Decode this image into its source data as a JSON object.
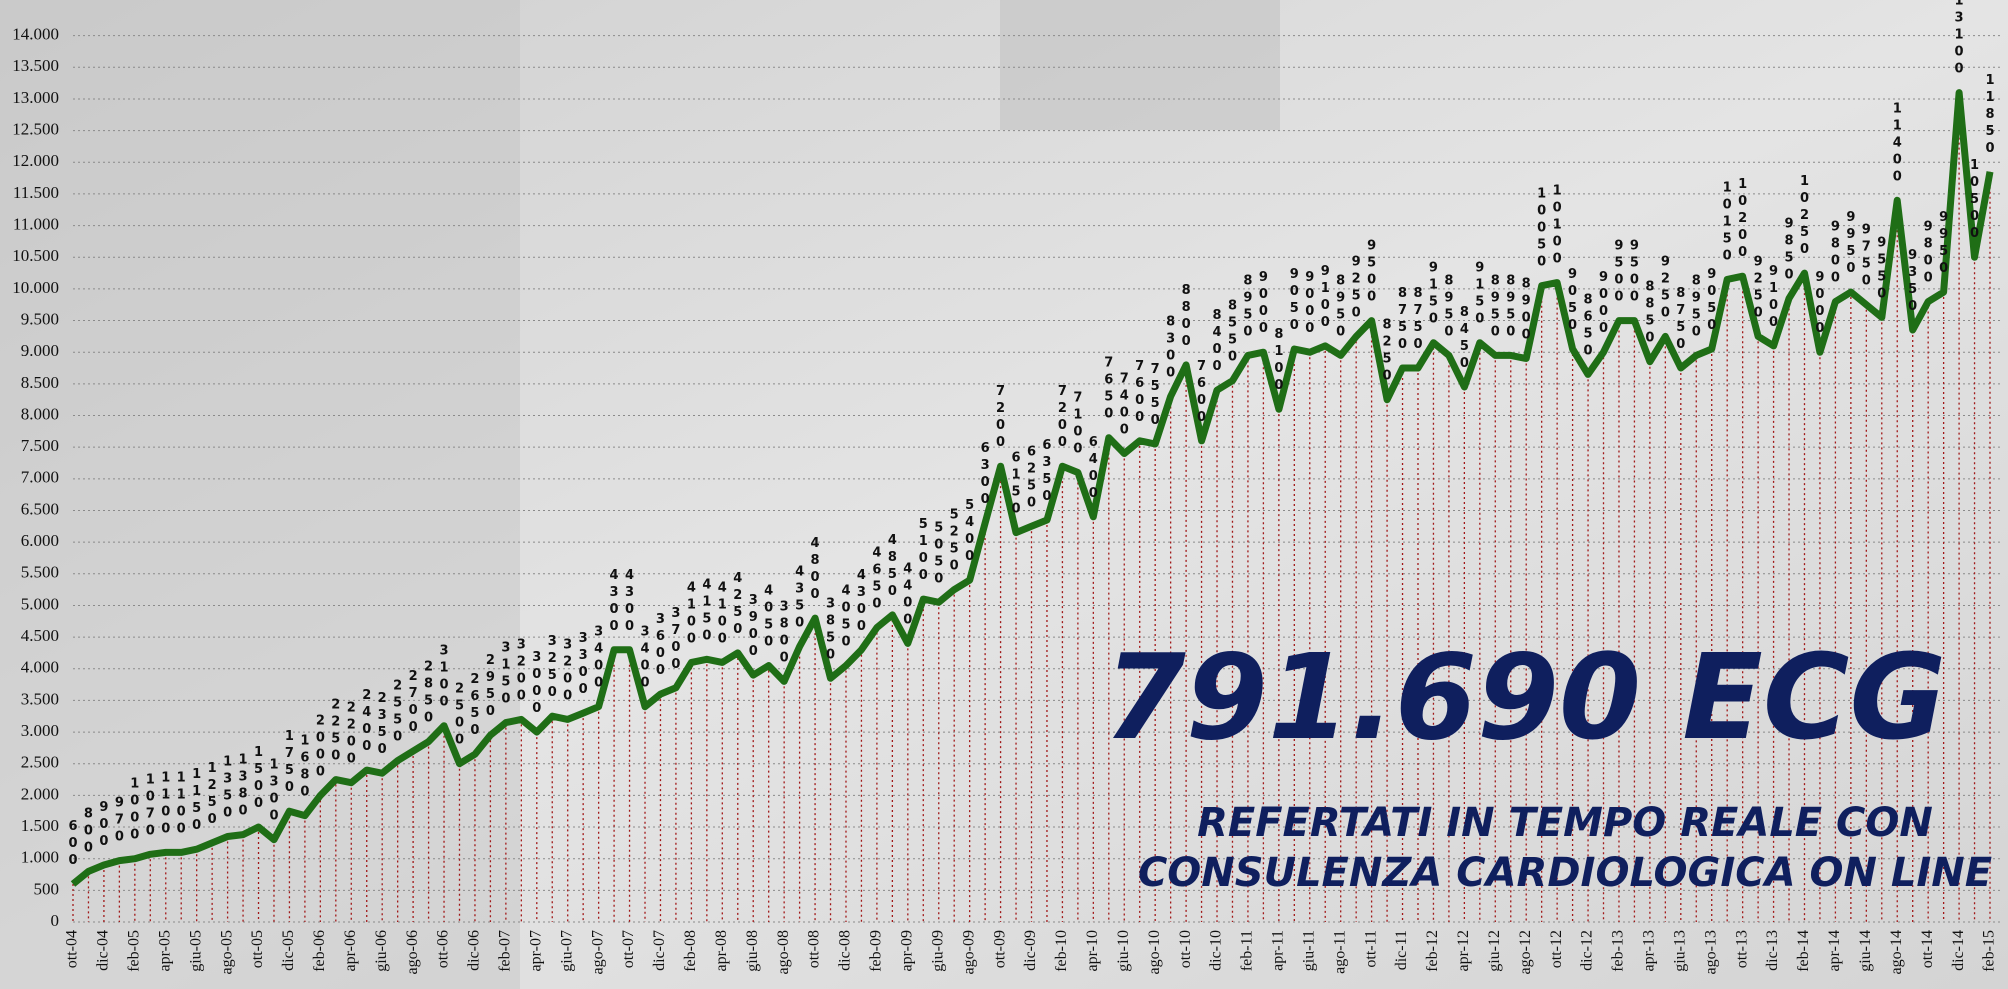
{
  "chart_data": {
    "type": "line",
    "headline": "791.690 ECG",
    "subtitle_lines": [
      "REFERTATI IN TEMPO REALE CON",
      "CONSULENZA CARDIOLOGICA ON LINE"
    ],
    "categories": [
      "ott-04",
      null,
      "dic-04",
      null,
      "feb-05",
      null,
      "apr-05",
      null,
      "giu-05",
      null,
      "ago-05",
      null,
      "ott-05",
      null,
      "dic-05",
      null,
      "feb-06",
      null,
      "apr-06",
      null,
      "giu-06",
      null,
      "ago-06",
      null,
      "ott-06",
      null,
      "dic-06",
      null,
      "feb-07",
      null,
      "apr-07",
      null,
      "giu-07",
      null,
      "ago-07",
      null,
      "ott-07",
      null,
      "dic-07",
      null,
      "feb-08",
      null,
      "apr-08",
      null,
      "giu-08",
      null,
      "ago-08",
      null,
      "ott-08",
      null,
      "dic-08",
      null,
      "feb-09",
      null,
      "apr-09",
      null,
      "giu-09",
      null,
      "ago-09",
      null,
      "ott-09",
      null,
      "dic-09",
      null,
      "feb-10",
      null,
      "apr-10",
      null,
      "giu-10",
      null,
      "ago-10",
      null,
      "ott-10",
      null,
      "dic-10",
      null,
      "feb-11",
      null,
      "apr-11",
      null,
      "giu-11",
      null,
      "ago-11",
      null,
      "ott-11",
      null,
      "dic-11",
      null,
      "feb-12",
      null,
      "apr-12",
      null,
      "giu-12",
      null,
      "ago-12",
      null,
      "ott-12",
      null,
      "dic-12",
      null,
      "feb-13",
      null,
      "apr-13",
      null,
      "giu-13",
      null,
      "ago-13",
      null,
      "ott-13",
      null,
      "dic-13",
      null,
      "feb-14",
      null,
      "apr-14",
      null,
      "giu-14",
      null,
      "ago-14",
      null,
      "ott-14",
      null,
      "dic-14",
      null,
      "feb-15"
    ],
    "values": [
      600,
      800,
      900,
      970,
      1000,
      1070,
      1100,
      1100,
      1150,
      1250,
      1350,
      1380,
      1500,
      1300,
      1750,
      1680,
      2000,
      2250,
      2200,
      2400,
      2350,
      2550,
      2700,
      2850,
      3100,
      2500,
      2650,
      2950,
      3150,
      3200,
      3000,
      3250,
      3200,
      3300,
      3400,
      4300,
      4300,
      3400,
      3600,
      3700,
      4100,
      4150,
      4100,
      4250,
      3900,
      4050,
      3800,
      4350,
      4800,
      3850,
      4050,
      4300,
      4650,
      4850,
      4400,
      5100,
      5050,
      5250,
      5400,
      6300,
      7200,
      6150,
      6250,
      6350,
      7200,
      7100,
      6400,
      7650,
      7400,
      7600,
      7550,
      8300,
      8800,
      7600,
      8400,
      8550,
      8950,
      9000,
      8100,
      9050,
      9000,
      9100,
      8950,
      9250,
      9500,
      8250,
      8750,
      8750,
      9150,
      8950,
      8450,
      9150,
      8950,
      8950,
      8900,
      10050,
      10100,
      9050,
      8650,
      9000,
      9500,
      9500,
      8850,
      9250,
      8750,
      8950,
      9050,
      10150,
      10200,
      9250,
      9100,
      9850,
      10250,
      9000,
      9800,
      9950,
      9750,
      9550,
      11400,
      9350,
      9800,
      9950,
      13100,
      10500,
      11850
    ],
    "color": "#1f6e16",
    "ylim": [
      0,
      14500
    ],
    "yticks": [
      0,
      500,
      {
        "value": 1000,
        "label": "1.000"
      },
      {
        "value": 1500,
        "label": "1.500"
      },
      {
        "value": 2000,
        "label": "2.000"
      },
      {
        "value": 2500,
        "label": "2.500"
      },
      {
        "value": 3000,
        "label": "3.000"
      },
      {
        "value": 3500,
        "label": "3.500"
      },
      {
        "value": 4000,
        "label": "4.000"
      },
      {
        "value": 4500,
        "label": "4.500"
      },
      {
        "value": 5000,
        "label": "5.000"
      },
      {
        "value": 5500,
        "label": "5.500"
      },
      {
        "value": 6000,
        "label": "6.000"
      },
      {
        "value": 6500,
        "label": "6.500"
      },
      {
        "value": 7000,
        "label": "7.000"
      },
      {
        "value": 7500,
        "label": "7.500"
      },
      {
        "value": 8000,
        "label": "8.000"
      },
      {
        "value": 8500,
        "label": "8.500"
      },
      {
        "value": 9000,
        "label": "9.000"
      },
      {
        "value": 9500,
        "label": "9.500"
      },
      {
        "value": 10000,
        "label": "10.000"
      },
      {
        "value": 10500,
        "label": "10.500"
      },
      {
        "value": 11000,
        "label": "11.000"
      },
      {
        "value": 11500,
        "label": "11.500"
      },
      {
        "value": 12000,
        "label": "12.000"
      },
      {
        "value": 12500,
        "label": "12.500"
      },
      {
        "value": 13000,
        "label": "13.000"
      },
      {
        "value": 13500,
        "label": "13.500"
      },
      {
        "value": 14000,
        "label": "14.000"
      }
    ],
    "grid": true
  }
}
